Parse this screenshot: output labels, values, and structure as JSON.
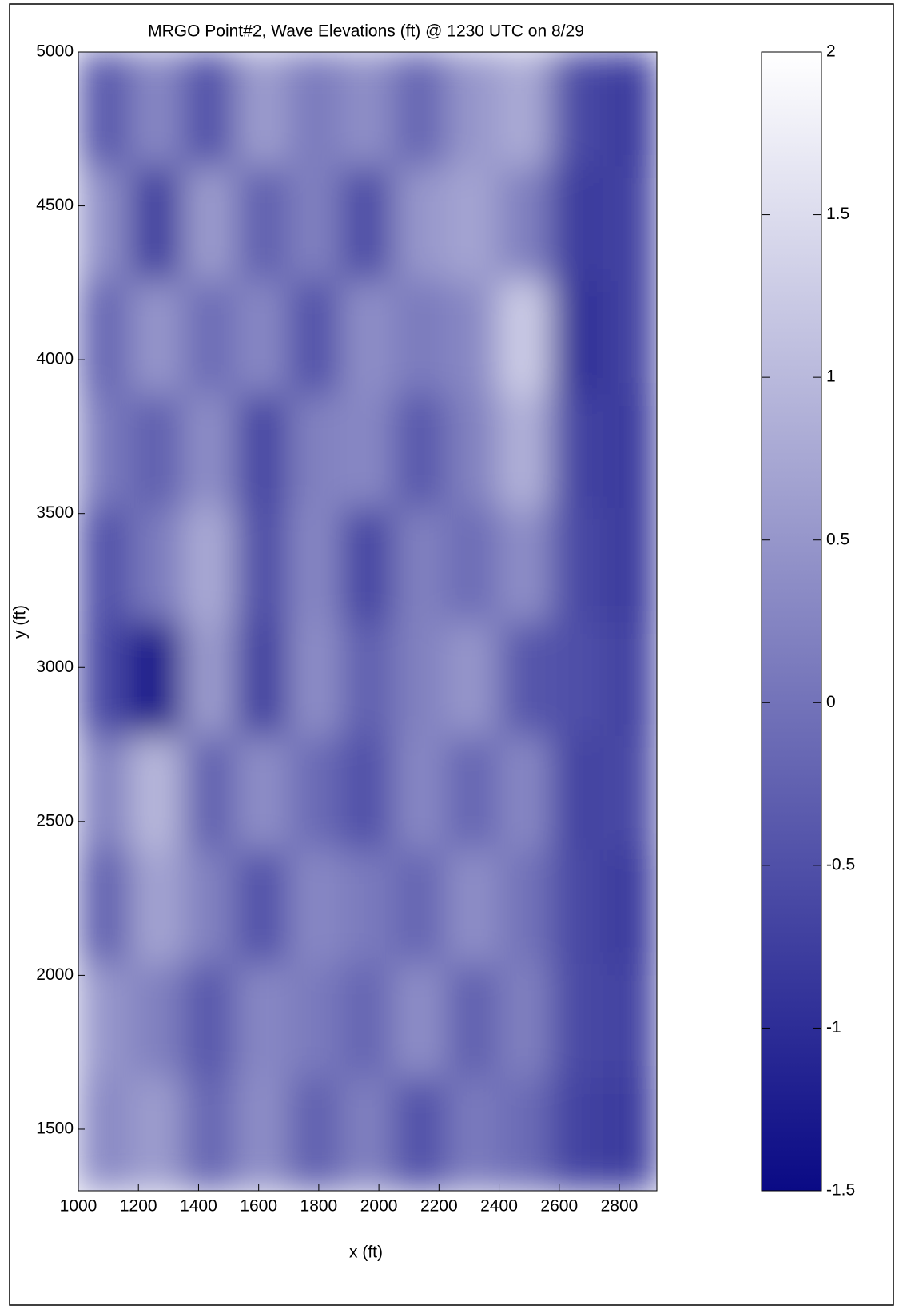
{
  "chart_data": {
    "type": "heatmap",
    "title": "MRGO Point#2, Wave Elevations (ft) @ 1230 UTC on 8/29",
    "xlabel": "x (ft)",
    "ylabel": "y (ft)",
    "x": [
      1087.5,
      1262.5,
      1437.5,
      1612.5,
      1787.5,
      1962.5,
      2137.5,
      2312.5,
      2487.5,
      2662.5,
      2837.5
    ],
    "y": [
      1485,
      1855,
      2225,
      2595,
      2965,
      3335,
      3705,
      4075,
      4445,
      4815
    ],
    "z": [
      [
        0.3,
        0.6,
        -0.2,
        0.4,
        -0.3,
        0.2,
        -0.5,
        0.1,
        -0.1,
        -0.7,
        -0.8
      ],
      [
        0.5,
        0.2,
        -0.4,
        0.3,
        0.1,
        -0.2,
        0.4,
        -0.3,
        0.2,
        -0.6,
        -0.7
      ],
      [
        -0.3,
        0.7,
        0.2,
        -0.5,
        0.3,
        0.1,
        -0.2,
        0.4,
        0.0,
        -0.6,
        -0.8
      ],
      [
        0.2,
        1.0,
        -0.3,
        0.4,
        -0.1,
        -0.5,
        0.3,
        -0.2,
        0.3,
        -0.7,
        -0.6
      ],
      [
        -0.6,
        -1.4,
        0.6,
        -0.8,
        0.4,
        -0.3,
        0.2,
        0.5,
        -0.4,
        -0.5,
        -0.7
      ],
      [
        -0.5,
        0.1,
        0.8,
        -0.6,
        0.3,
        -0.7,
        0.2,
        -0.1,
        0.4,
        -0.6,
        -0.8
      ],
      [
        0.1,
        -0.3,
        0.4,
        -0.7,
        0.2,
        0.3,
        -0.4,
        0.2,
        0.9,
        -0.7,
        -0.8
      ],
      [
        -0.2,
        0.5,
        -0.1,
        0.3,
        -0.5,
        0.4,
        0.1,
        0.3,
        1.3,
        -1.0,
        -0.7
      ],
      [
        0.4,
        -0.8,
        0.6,
        -0.3,
        0.2,
        -0.6,
        0.5,
        0.7,
        0.2,
        -0.8,
        -0.7
      ],
      [
        -0.4,
        0.3,
        -0.5,
        0.6,
        0.1,
        0.4,
        -0.2,
        0.5,
        0.8,
        -0.6,
        -0.8
      ]
    ],
    "xlim": [
      1000,
      2925
    ],
    "ylim": [
      1300,
      5000
    ],
    "xticks": [
      1000,
      1200,
      1400,
      1600,
      1800,
      2000,
      2200,
      2400,
      2600,
      2800
    ],
    "yticks": [
      1500,
      2000,
      2500,
      3000,
      3500,
      4000,
      4500,
      5000
    ],
    "colormap": [
      "#0a0a85",
      "#ffffff"
    ],
    "clim": [
      -1.5,
      2
    ],
    "cticks": [
      -1.5,
      -1,
      -0.5,
      0,
      0.5,
      1,
      1.5,
      2
    ]
  }
}
